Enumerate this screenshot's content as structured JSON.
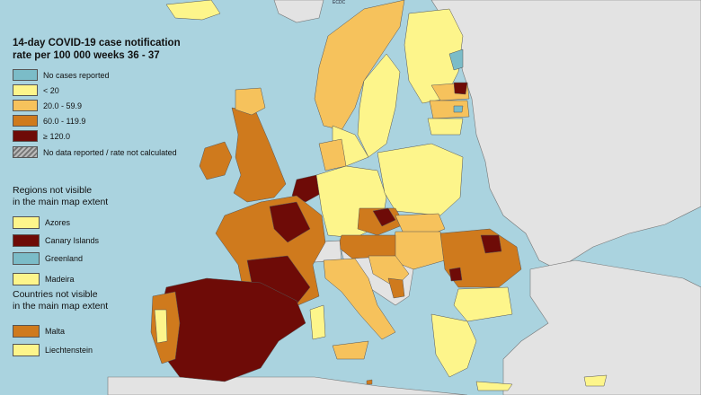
{
  "title_line1": "14-day COVID-19 case notification",
  "title_line2": "rate per 100 000 weeks 36 - 37",
  "legend": [
    {
      "label": "No cases reported",
      "color": "#7bbcc8"
    },
    {
      "label": "< 20",
      "color": "#fdf58b"
    },
    {
      "label": "20.0 - 59.9",
      "color": "#f6c25c"
    },
    {
      "label": "60.0 - 119.9",
      "color": "#cf7a1d"
    },
    {
      "label": "≥ 120.0",
      "color": "#6e0b07"
    },
    {
      "label": "No data reported / rate not calculated",
      "color": "hatch"
    }
  ],
  "regions_heading_line1": "Regions not visible",
  "regions_heading_line2": "in the main map extent",
  "regions": [
    {
      "label": "Azores",
      "color": "#fdf58b"
    },
    {
      "label": "Canary Islands",
      "color": "#6e0b07"
    },
    {
      "label": "Greenland",
      "color": "#7bbcc8"
    },
    {
      "label": "Madeira",
      "color": "#fdf58b"
    }
  ],
  "countries_heading_line1": "Countries not visible",
  "countries_heading_line2": "in the main map extent",
  "countries": [
    {
      "label": "Malta",
      "color": "#cf7a1d"
    },
    {
      "label": "Liechtenstein",
      "color": "#fdf58b"
    }
  ],
  "logo_text": "ECDC",
  "colors": {
    "sea": "#aad3df",
    "non_eu_land": "#e3e3e3",
    "borders": "#555555"
  }
}
